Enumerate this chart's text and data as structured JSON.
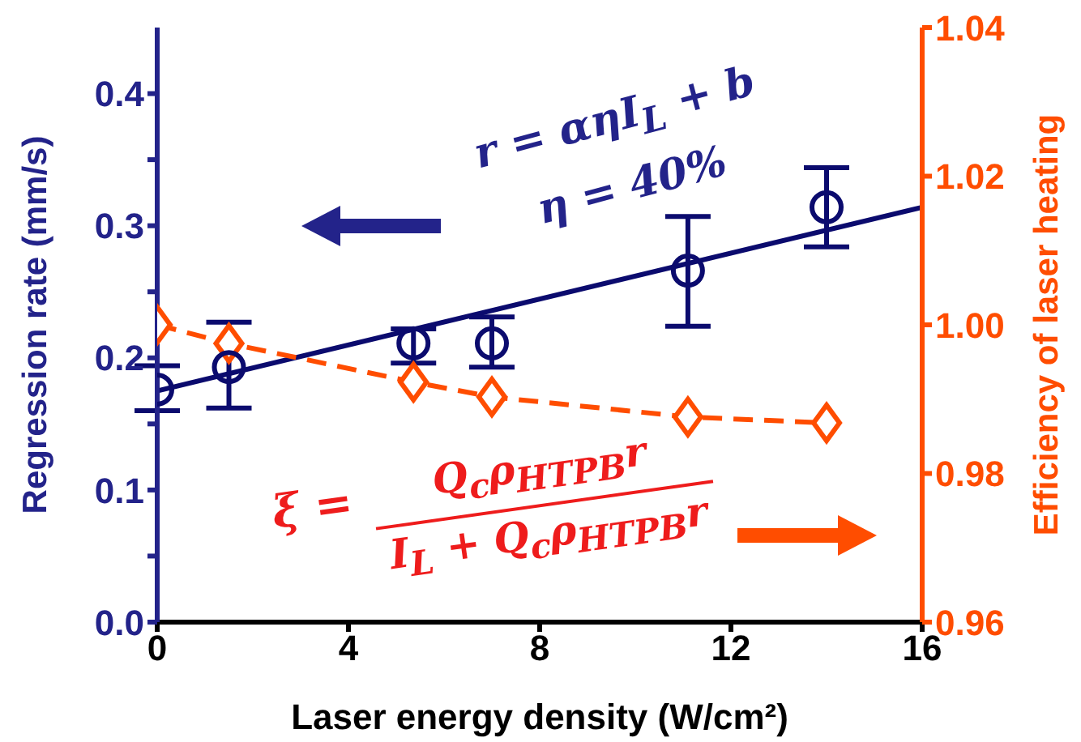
{
  "chart_data": {
    "type": "scatter",
    "xlabel": "Laser energy density (W/cm²)",
    "ylabel": "Regression rate (mm/s)",
    "y2label": "Efficiency of laser heating",
    "xlim": [
      0,
      16
    ],
    "xticks": [
      0,
      4,
      8,
      12,
      16
    ],
    "ylim": [
      0,
      0.45
    ],
    "yticks": [
      {
        "value": 0,
        "label": "0.0"
      },
      {
        "value": 0.05,
        "label": null
      },
      0.1,
      {
        "value": 0.15,
        "label": null
      },
      0.2,
      {
        "value": 0.25,
        "label": null
      },
      0.3,
      {
        "value": 0.35,
        "label": null
      },
      0.4
    ],
    "y2lim": [
      0.96,
      1.04
    ],
    "y2ticks": [
      0.96,
      0.98,
      {
        "value": 1,
        "label": "1.00"
      },
      1.02,
      1.04
    ],
    "series": [
      {
        "type": "line",
        "color": "#0b0b6e",
        "x": [
          0,
          16
        ],
        "values": [
          0.175,
          0.314
        ],
        "marker": "none",
        "line_style": "solid"
      },
      {
        "type": "line",
        "color": "#ff4d00",
        "x": [
          0,
          1.5,
          5.36,
          7,
          11.1,
          14
        ],
        "values": [
          1.0,
          0.9975,
          0.9923,
          0.9903,
          0.9876,
          0.9868
        ],
        "marker": "diamond",
        "line_style": "dashed",
        "axis": "y2"
      },
      {
        "color": "#0b0b6e",
        "x": [
          0,
          1.5,
          5.36,
          7,
          11.1,
          14
        ],
        "values": [
          0.176,
          0.193,
          0.211,
          0.211,
          0.266,
          0.314
        ],
        "errors": [
          [
            0.16,
            0.194
          ],
          [
            0.162,
            0.227
          ],
          [
            0.196,
            0.222
          ],
          [
            0.193,
            0.231
          ],
          [
            0.224,
            0.307
          ],
          [
            0.284,
            0.344
          ]
        ],
        "marker": "circle"
      }
    ],
    "annotations": [
      "r = αηI$_{L}$ + b",
      "η = 40%",
      "ξ =",
      "Q$_{c}$ρ$_{HTPB}$r",
      "I$_{L}$ + Q$_{c}$ρ$_{HTPB}$r"
    ]
  }
}
